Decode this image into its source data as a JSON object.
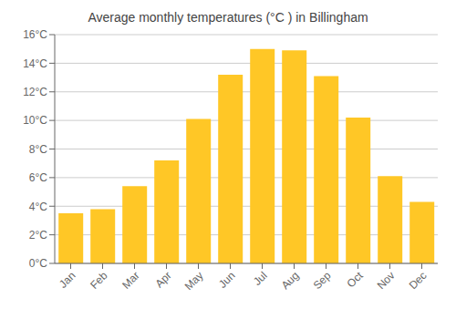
{
  "chart_data": {
    "type": "bar",
    "title": "Average monthly temperatures (°C ) in Billingham",
    "categories": [
      "Jan",
      "Feb",
      "Mar",
      "Apr",
      "May",
      "Jun",
      "Jul",
      "Aug",
      "Sep",
      "Oct",
      "Nov",
      "Dec"
    ],
    "values": [
      3.5,
      3.8,
      5.4,
      7.2,
      10.1,
      13.2,
      15.0,
      14.9,
      13.1,
      10.2,
      6.1,
      4.3
    ],
    "color": "#FFC726",
    "ylim": [
      0,
      16
    ],
    "yticks": [
      {
        "value": 0,
        "label": "0°C"
      },
      {
        "value": 2,
        "label": "2°C"
      },
      {
        "value": 4,
        "label": "4°C"
      },
      {
        "value": 6,
        "label": "6°C"
      },
      {
        "value": 8,
        "label": "8°C"
      },
      {
        "value": 10,
        "label": "10°C"
      },
      {
        "value": 12,
        "label": "12°C"
      },
      {
        "value": 14,
        "label": "14°C"
      },
      {
        "value": 16,
        "label": "16°C"
      }
    ],
    "grid": true
  }
}
